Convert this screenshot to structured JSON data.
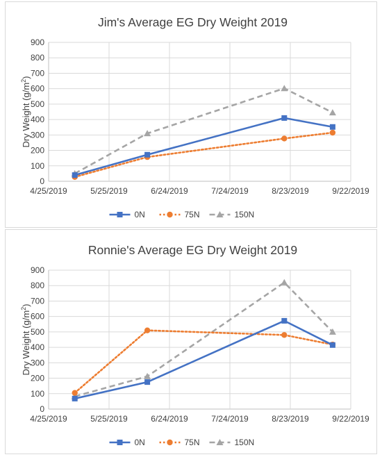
{
  "chart_data": [
    {
      "type": "line",
      "title": "Jim's Average EG Dry Weight 2019",
      "xlabel": "",
      "ylabel": "Dry Weight (g/m²)",
      "x_type": "date",
      "xlim": [
        "2019-04-25",
        "2019-09-22"
      ],
      "x_ticks": [
        "4/25/2019",
        "5/25/2019",
        "6/24/2019",
        "7/24/2019",
        "8/23/2019",
        "9/22/2019"
      ],
      "ylim": [
        0,
        900
      ],
      "y_ticks": [
        0,
        100,
        200,
        300,
        400,
        500,
        600,
        700,
        800,
        900
      ],
      "grid": true,
      "legend": "bottom",
      "series": [
        {
          "name": "0N",
          "color": "#4472c4",
          "line_style": "solid",
          "marker": "square",
          "points": [
            {
              "x": "2019-05-08",
              "y": 40
            },
            {
              "x": "2019-06-13",
              "y": 172
            },
            {
              "x": "2019-08-20",
              "y": 410
            },
            {
              "x": "2019-09-13",
              "y": 352
            }
          ]
        },
        {
          "name": "75N",
          "color": "#ed7d31",
          "line_style": "dotted",
          "marker": "circle",
          "points": [
            {
              "x": "2019-05-08",
              "y": 28
            },
            {
              "x": "2019-06-13",
              "y": 157
            },
            {
              "x": "2019-08-20",
              "y": 277
            },
            {
              "x": "2019-09-13",
              "y": 315
            }
          ]
        },
        {
          "name": "150N",
          "color": "#a5a5a5",
          "line_style": "dashed",
          "marker": "triangle",
          "points": [
            {
              "x": "2019-05-08",
              "y": 50
            },
            {
              "x": "2019-06-13",
              "y": 310
            },
            {
              "x": "2019-08-20",
              "y": 602
            },
            {
              "x": "2019-09-13",
              "y": 445
            }
          ]
        }
      ]
    },
    {
      "type": "line",
      "title": "Ronnie's Average EG Dry Weight 2019",
      "xlabel": "",
      "ylabel": "Dry Weight (g/m²)",
      "x_type": "date",
      "xlim": [
        "2019-04-25",
        "2019-09-22"
      ],
      "x_ticks": [
        "4/25/2019",
        "5/25/2019",
        "6/24/2019",
        "7/24/2019",
        "8/23/2019",
        "9/22/2019"
      ],
      "ylim": [
        0,
        900
      ],
      "y_ticks": [
        0,
        100,
        200,
        300,
        400,
        500,
        600,
        700,
        800,
        900
      ],
      "grid": true,
      "legend": "bottom",
      "series": [
        {
          "name": "0N",
          "color": "#4472c4",
          "line_style": "solid",
          "marker": "square",
          "points": [
            {
              "x": "2019-05-08",
              "y": 68
            },
            {
              "x": "2019-06-13",
              "y": 175
            },
            {
              "x": "2019-08-20",
              "y": 572
            },
            {
              "x": "2019-09-13",
              "y": 415
            }
          ]
        },
        {
          "name": "75N",
          "color": "#ed7d31",
          "line_style": "dotted",
          "marker": "circle",
          "points": [
            {
              "x": "2019-05-08",
              "y": 105
            },
            {
              "x": "2019-06-13",
              "y": 510
            },
            {
              "x": "2019-08-20",
              "y": 480
            },
            {
              "x": "2019-09-13",
              "y": 418
            }
          ]
        },
        {
          "name": "150N",
          "color": "#a5a5a5",
          "line_style": "dashed",
          "marker": "triangle",
          "points": [
            {
              "x": "2019-05-08",
              "y": 82
            },
            {
              "x": "2019-06-13",
              "y": 212
            },
            {
              "x": "2019-08-20",
              "y": 820
            },
            {
              "x": "2019-09-13",
              "y": 500
            }
          ]
        }
      ]
    }
  ]
}
